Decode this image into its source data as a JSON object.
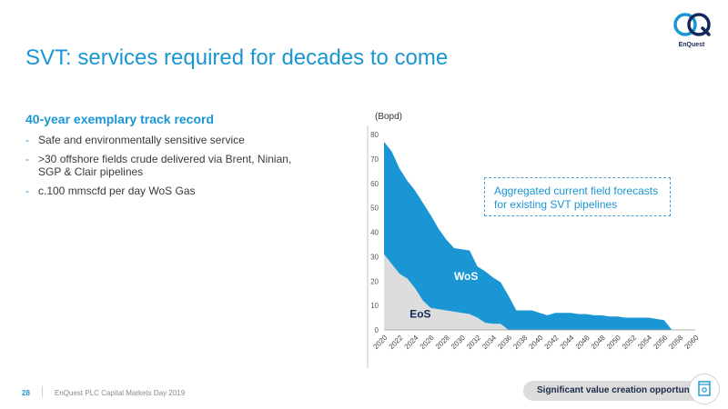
{
  "brand": {
    "logo_mark": "eQ",
    "logo_word": "EnQuest",
    "primary": "#1a96d4",
    "navy": "#13295a"
  },
  "slide": {
    "title": "SVT: services required for decades to come",
    "subheading": "40-year exemplary track record",
    "bullets": [
      {
        "marker": "-",
        "text": "Safe and environmentally sensitive service"
      },
      {
        "marker": "-",
        "text": ">30 offshore fields crude delivered via Brent, Ninian, SGP & Clair pipelines"
      },
      {
        "marker": "-",
        "text": "c.100 mmscfd per day WoS Gas"
      }
    ]
  },
  "chart_data": {
    "type": "area",
    "unit_label": "(Bopd)",
    "ylim": [
      0,
      80
    ],
    "yticks": [
      0,
      10,
      20,
      30,
      40,
      50,
      60,
      70,
      80
    ],
    "x": [
      2020,
      2021,
      2022,
      2023,
      2024,
      2025,
      2026,
      2027,
      2028,
      2029,
      2030,
      2031,
      2032,
      2033,
      2034,
      2035,
      2036,
      2037,
      2038,
      2039,
      2040,
      2041,
      2042,
      2043,
      2044,
      2045,
      2046,
      2047,
      2048,
      2049,
      2050,
      2051,
      2052,
      2053,
      2054,
      2055,
      2056,
      2057,
      2058,
      2059,
      2060
    ],
    "xticks": [
      "2020",
      "2022",
      "2024",
      "2026",
      "2028",
      "2030",
      "2032",
      "2034",
      "2036",
      "2038",
      "2040",
      "2042",
      "2044",
      "2046",
      "2048",
      "2050",
      "2052",
      "2054",
      "2056",
      "2058",
      "2060"
    ],
    "stacked": true,
    "series": [
      {
        "name": "EoS",
        "color": "#dddddd",
        "values": [
          31,
          27,
          23,
          21,
          17,
          12,
          9,
          8.5,
          8,
          7.5,
          7,
          6.5,
          5,
          3,
          2.5,
          2.5,
          0,
          0,
          0,
          0,
          0,
          0,
          0,
          0,
          0,
          0,
          0,
          0,
          0,
          0,
          0,
          0,
          0,
          0,
          0,
          0,
          0,
          0,
          0,
          0,
          0
        ]
      },
      {
        "name": "WoS",
        "color": "#1a96d4",
        "values": [
          46,
          46,
          43,
          40,
          40,
          40,
          38,
          33,
          29,
          26,
          26,
          26,
          21,
          21,
          19,
          17,
          14,
          8,
          8,
          8,
          7,
          6,
          7,
          7,
          7,
          6.5,
          6.5,
          6,
          6,
          5.5,
          5.5,
          5,
          5,
          5,
          5,
          4.5,
          4,
          0,
          0,
          0,
          0
        ]
      }
    ],
    "callout": "Aggregated current field forecasts for existing SVT pipelines"
  },
  "footer": {
    "page": "28",
    "text": "EnQuest PLC Capital Markets Day 2019",
    "banner": "Significant value creation opportunity",
    "banner_icon": "document-icon"
  }
}
